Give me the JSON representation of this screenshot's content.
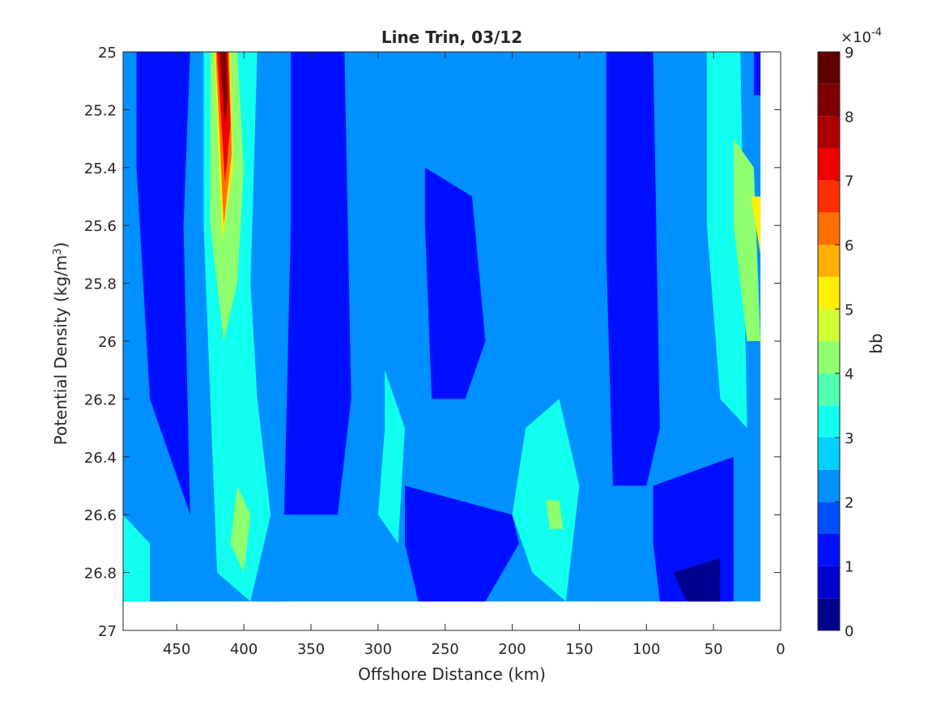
{
  "chart_data": {
    "type": "heatmap",
    "subtype": "filled-contour",
    "title": "Line Trin, 03/12",
    "xlabel": "Offshore Distance (km)",
    "ylabel_main": "Potential Density (kg/m",
    "ylabel_sup": "3",
    "ylabel_tail": ")",
    "x_reversed": true,
    "y_reversed": true,
    "xlim": [
      0,
      490
    ],
    "ylim": [
      25,
      27
    ],
    "xticks": [
      450,
      400,
      350,
      300,
      250,
      200,
      150,
      100,
      50,
      0
    ],
    "yticks": [
      25,
      25.2,
      25.4,
      25.6,
      25.8,
      26,
      26.2,
      26.4,
      26.6,
      26.8,
      27
    ],
    "colorbar": {
      "label": "bb",
      "exponent_base": "×10",
      "exponent_power": "-4",
      "ticks": [
        0,
        1,
        2,
        3,
        4,
        5,
        6,
        7,
        8,
        9
      ],
      "levels": [
        0,
        0.5,
        1,
        1.5,
        2,
        2.5,
        3,
        3.5,
        4,
        4.5,
        5,
        5.5,
        6,
        6.5,
        7,
        7.5,
        8,
        8.5,
        9
      ],
      "colors": [
        "#00008f",
        "#0000cf",
        "#0010ff",
        "#0050ff",
        "#0090ff",
        "#00d0ff",
        "#10ffef",
        "#50ffaf",
        "#90ff6f",
        "#cfff30",
        "#ffef00",
        "#ffaf00",
        "#ff7000",
        "#ff3000",
        "#ef0000",
        "#af0000",
        "#800000",
        "#600000"
      ]
    },
    "data_extent": {
      "x_range": [
        15,
        490
      ],
      "density_bottom": 26.9
    },
    "regions": [
      {
        "level": 2,
        "x": [
          490,
          440,
          430,
          420,
          390,
          370,
          380,
          370,
          380,
          490
        ],
        "y": [
          25,
          25,
          25.6,
          26.8,
          26.9,
          26.9,
          26.4,
          25.6,
          25,
          25
        ]
      },
      {
        "level": 1,
        "x": [
          480,
          440,
          445,
          440,
          470,
          480
        ],
        "y": [
          25,
          25,
          25.6,
          26.6,
          26.2,
          25.4
        ]
      },
      {
        "level": 2,
        "x": [
          490,
          470,
          460,
          490
        ],
        "y": [
          26.7,
          26.8,
          26.9,
          26.9
        ]
      },
      {
        "level": 3,
        "x": [
          490,
          470,
          470,
          490
        ],
        "y": [
          26.6,
          26.7,
          26.9,
          26.9
        ]
      },
      {
        "level": 3,
        "x": [
          430,
          390,
          395,
          390,
          380,
          395,
          420,
          430
        ],
        "y": [
          25,
          25,
          25.8,
          26.2,
          26.6,
          26.9,
          26.8,
          25.6
        ]
      },
      {
        "level": 4,
        "x": [
          425,
          405,
          400,
          405,
          415,
          425
        ],
        "y": [
          25,
          25,
          25.4,
          25.8,
          26.0,
          25.6
        ]
      },
      {
        "level": 4,
        "x": [
          405,
          395,
          400,
          410
        ],
        "y": [
          26.5,
          26.6,
          26.8,
          26.7
        ]
      },
      {
        "level": 5,
        "x": [
          422,
          410,
          408,
          416
        ],
        "y": [
          25,
          25,
          25.4,
          25.65
        ]
      },
      {
        "level": 6,
        "x": [
          421,
          411,
          409,
          415
        ],
        "y": [
          25,
          25,
          25.35,
          25.6
        ]
      },
      {
        "level": 7,
        "x": [
          420,
          412,
          410,
          414
        ],
        "y": [
          25,
          25,
          25.25,
          25.45
        ]
      },
      {
        "level": 8,
        "x": [
          418,
          413,
          412,
          414
        ],
        "y": [
          25,
          25,
          25.15,
          25.25
        ]
      },
      {
        "level": 1,
        "x": [
          365,
          325,
          320,
          330,
          370,
          365
        ],
        "y": [
          25,
          25,
          26.2,
          26.6,
          26.6,
          25.6
        ]
      },
      {
        "level": 1,
        "x": [
          280,
          200,
          195,
          220,
          270,
          280
        ],
        "y": [
          26.5,
          26.6,
          26.7,
          26.9,
          26.9,
          26.7
        ]
      },
      {
        "level": 3,
        "x": [
          295,
          280,
          285,
          300,
          295
        ],
        "y": [
          26.1,
          26.3,
          26.7,
          26.6,
          26.3
        ]
      },
      {
        "level": 1,
        "x": [
          265,
          230,
          220,
          235,
          260,
          265
        ],
        "y": [
          25.4,
          25.5,
          26.0,
          26.2,
          26.2,
          25.6
        ]
      },
      {
        "level": 3,
        "x": [
          190,
          165,
          150,
          160,
          185,
          200
        ],
        "y": [
          26.3,
          26.2,
          26.5,
          26.9,
          26.8,
          26.6
        ]
      },
      {
        "level": 4,
        "x": [
          175,
          165,
          162,
          172
        ],
        "y": [
          26.55,
          26.55,
          26.65,
          26.65
        ]
      },
      {
        "level": 1,
        "x": [
          130,
          95,
          90,
          100,
          125,
          130
        ],
        "y": [
          25,
          25,
          26.3,
          26.5,
          26.5,
          25.7
        ]
      },
      {
        "level": 1,
        "x": [
          95,
          35,
          35,
          90,
          95
        ],
        "y": [
          26.5,
          26.4,
          26.9,
          26.9,
          26.7
        ]
      },
      {
        "level": 0,
        "x": [
          80,
          45,
          45,
          70
        ],
        "y": [
          26.8,
          26.75,
          26.9,
          26.9
        ]
      },
      {
        "level": 3,
        "x": [
          55,
          30,
          25,
          45,
          55
        ],
        "y": [
          25,
          25,
          26.3,
          26.2,
          25.6
        ]
      },
      {
        "level": 4,
        "x": [
          35,
          20,
          15,
          25,
          35
        ],
        "y": [
          25.3,
          25.4,
          26.0,
          26.0,
          25.6
        ]
      },
      {
        "level": 5,
        "x": [
          22,
          15,
          15
        ],
        "y": [
          25.5,
          25.5,
          25.7
        ]
      },
      {
        "level": 1,
        "x": [
          20,
          15,
          15,
          20
        ],
        "y": [
          25,
          25,
          25.15,
          25.15
        ]
      }
    ]
  }
}
